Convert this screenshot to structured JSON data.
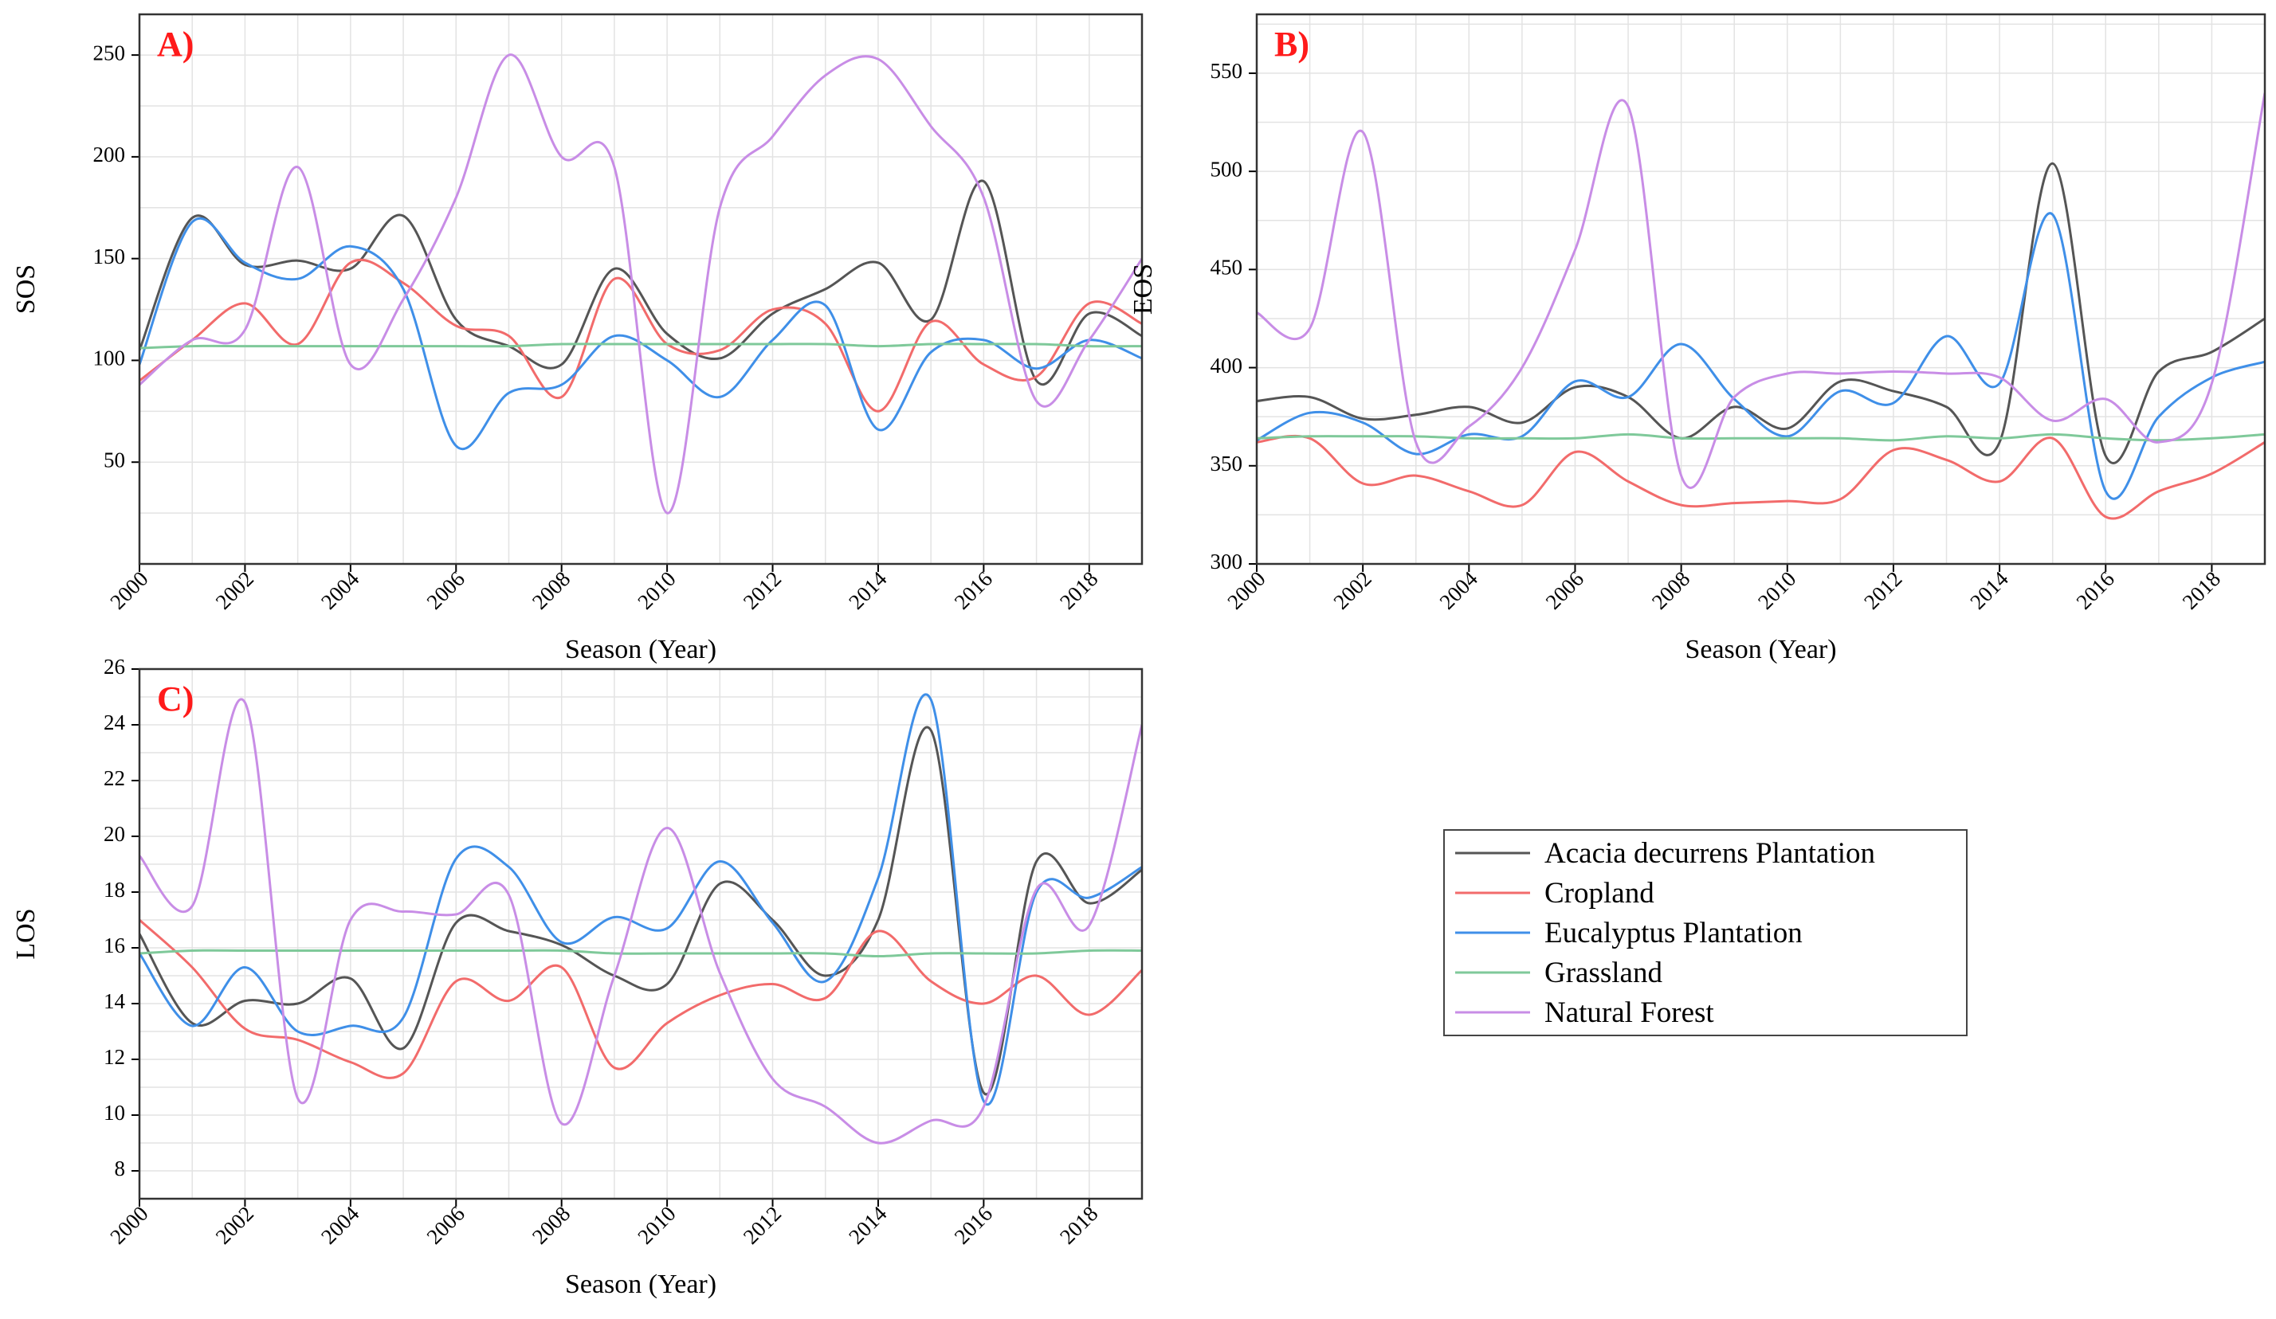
{
  "colors": {
    "acacia": "#555555",
    "cropland": "#f26b6b",
    "eucalyptus": "#3f8fe8",
    "grassland": "#7fc99a",
    "natural_forest": "#c88de6"
  },
  "legend": {
    "entries": [
      "Acacia decurrens Plantation",
      "Cropland",
      "Eucalyptus Plantation",
      "Grassland",
      "Natural Forest"
    ]
  },
  "chart_data": [
    {
      "type": "line",
      "panel_label": "A)",
      "xlabel": "Season (Year)",
      "ylabel": "SOS",
      "xlim": [
        2000,
        2019
      ],
      "ylim": [
        0,
        270
      ],
      "x_ticks": [
        "2000",
        "2002",
        "2004",
        "2006",
        "2008",
        "2010",
        "2012",
        "2014",
        "2016",
        "2018"
      ],
      "y_ticks": [
        "50",
        "100",
        "150",
        "200",
        "250"
      ],
      "x_tick_values": [
        2000,
        2002,
        2004,
        2006,
        2008,
        2010,
        2012,
        2014,
        2016,
        2018
      ],
      "y_tick_values": [
        50,
        100,
        150,
        200,
        250
      ],
      "grid": true,
      "series": [
        {
          "name": "Acacia decurrens Plantation",
          "x": [
            2000,
            2001,
            2002,
            2003,
            2004,
            2005,
            2006,
            2007,
            2008,
            2009,
            2010,
            2011,
            2012,
            2013,
            2014,
            2015,
            2016,
            2017,
            2018,
            2019
          ],
          "values": [
            105,
            170,
            147,
            149,
            145,
            171,
            120,
            107,
            98,
            145,
            113,
            101,
            123,
            135,
            148,
            120,
            188,
            90,
            123,
            112
          ]
        },
        {
          "name": "Cropland",
          "x": [
            2000,
            2001,
            2002,
            2003,
            2004,
            2005,
            2006,
            2007,
            2008,
            2009,
            2010,
            2011,
            2012,
            2013,
            2014,
            2015,
            2016,
            2017,
            2018,
            2019
          ],
          "values": [
            90,
            110,
            128,
            108,
            148,
            138,
            117,
            112,
            82,
            140,
            108,
            105,
            125,
            118,
            75,
            119,
            98,
            92,
            128,
            118
          ]
        },
        {
          "name": "Eucalyptus Plantation",
          "x": [
            2000,
            2001,
            2002,
            2003,
            2004,
            2005,
            2006,
            2007,
            2008,
            2009,
            2010,
            2011,
            2012,
            2013,
            2014,
            2015,
            2016,
            2017,
            2018,
            2019
          ],
          "values": [
            98,
            168,
            148,
            140,
            156,
            135,
            58,
            84,
            88,
            112,
            100,
            82,
            110,
            127,
            66,
            104,
            110,
            96,
            110,
            101
          ]
        },
        {
          "name": "Grassland",
          "x": [
            2000,
            2001,
            2002,
            2003,
            2004,
            2005,
            2006,
            2007,
            2008,
            2009,
            2010,
            2011,
            2012,
            2013,
            2014,
            2015,
            2016,
            2017,
            2018,
            2019
          ],
          "values": [
            106,
            107,
            107,
            107,
            107,
            107,
            107,
            107,
            108,
            108,
            108,
            108,
            108,
            108,
            107,
            108,
            108,
            108,
            107,
            107
          ]
        },
        {
          "name": "Natural Forest",
          "x": [
            2000,
            2001,
            2002,
            2003,
            2004,
            2005,
            2006,
            2007,
            2008,
            2009,
            2010,
            2011,
            2012,
            2013,
            2014,
            2015,
            2016,
            2017,
            2018,
            2019
          ],
          "values": [
            88,
            110,
            115,
            195,
            98,
            130,
            180,
            250,
            200,
            195,
            25,
            175,
            210,
            240,
            248,
            215,
            180,
            80,
            110,
            150
          ]
        }
      ]
    },
    {
      "type": "line",
      "panel_label": "B)",
      "xlabel": "Season (Year)",
      "ylabel": "EOS",
      "xlim": [
        2000,
        2019
      ],
      "ylim": [
        300,
        580
      ],
      "x_ticks": [
        "2000",
        "2002",
        "2004",
        "2006",
        "2008",
        "2010",
        "2012",
        "2014",
        "2016",
        "2018"
      ],
      "y_ticks": [
        "300",
        "350",
        "400",
        "450",
        "500",
        "550"
      ],
      "x_tick_values": [
        2000,
        2002,
        2004,
        2006,
        2008,
        2010,
        2012,
        2014,
        2016,
        2018
      ],
      "y_tick_values": [
        300,
        350,
        400,
        450,
        500,
        550
      ],
      "grid": true,
      "series": [
        {
          "name": "Acacia decurrens Plantation",
          "x": [
            2000,
            2001,
            2002,
            2003,
            2004,
            2005,
            2006,
            2007,
            2008,
            2009,
            2010,
            2011,
            2012,
            2013,
            2014,
            2015,
            2016,
            2017,
            2018,
            2019
          ],
          "values": [
            383,
            385,
            374,
            376,
            380,
            372,
            390,
            385,
            364,
            380,
            369,
            393,
            388,
            380,
            362,
            504,
            355,
            398,
            408,
            425
          ]
        },
        {
          "name": "Cropland",
          "x": [
            2000,
            2001,
            2002,
            2003,
            2004,
            2005,
            2006,
            2007,
            2008,
            2009,
            2010,
            2011,
            2012,
            2013,
            2014,
            2015,
            2016,
            2017,
            2018,
            2019
          ],
          "values": [
            362,
            364,
            341,
            345,
            337,
            330,
            357,
            342,
            330,
            331,
            332,
            333,
            358,
            353,
            342,
            364,
            324,
            337,
            346,
            362
          ]
        },
        {
          "name": "Eucalyptus Plantation",
          "x": [
            2000,
            2001,
            2002,
            2003,
            2004,
            2005,
            2006,
            2007,
            2008,
            2009,
            2010,
            2011,
            2012,
            2013,
            2014,
            2015,
            2016,
            2017,
            2018,
            2019
          ],
          "values": [
            363,
            377,
            372,
            356,
            366,
            365,
            393,
            385,
            412,
            384,
            365,
            388,
            382,
            416,
            392,
            478,
            337,
            375,
            395,
            403
          ]
        },
        {
          "name": "Grassland",
          "x": [
            2000,
            2001,
            2002,
            2003,
            2004,
            2005,
            2006,
            2007,
            2008,
            2009,
            2010,
            2011,
            2012,
            2013,
            2014,
            2015,
            2016,
            2017,
            2018,
            2019
          ],
          "values": [
            364,
            365,
            365,
            365,
            364,
            364,
            364,
            366,
            364,
            364,
            364,
            364,
            363,
            365,
            364,
            366,
            364,
            363,
            364,
            366
          ]
        },
        {
          "name": "Natural Forest",
          "x": [
            2000,
            2001,
            2002,
            2003,
            2004,
            2005,
            2006,
            2007,
            2008,
            2009,
            2010,
            2011,
            2012,
            2013,
            2014,
            2015,
            2016,
            2017,
            2018,
            2019
          ],
          "values": [
            428,
            420,
            520,
            362,
            370,
            400,
            460,
            533,
            345,
            385,
            397,
            397,
            398,
            397,
            395,
            373,
            384,
            362,
            392,
            540
          ]
        }
      ]
    },
    {
      "type": "line",
      "panel_label": "C)",
      "xlabel": "Season (Year)",
      "ylabel": "LOS",
      "xlim": [
        2000,
        2019
      ],
      "ylim": [
        7,
        26
      ],
      "x_ticks": [
        "2000",
        "2002",
        "2004",
        "2006",
        "2008",
        "2010",
        "2012",
        "2014",
        "2016",
        "2018"
      ],
      "y_ticks": [
        "8",
        "10",
        "12",
        "14",
        "16",
        "18",
        "20",
        "22",
        "24",
        "26"
      ],
      "x_tick_values": [
        2000,
        2002,
        2004,
        2006,
        2008,
        2010,
        2012,
        2014,
        2016,
        2018
      ],
      "y_tick_values": [
        8,
        10,
        12,
        14,
        16,
        18,
        20,
        22,
        24,
        26
      ],
      "grid": true,
      "series": [
        {
          "name": "Acacia decurrens Plantation",
          "x": [
            2000,
            2001,
            2002,
            2003,
            2004,
            2005,
            2006,
            2007,
            2008,
            2009,
            2010,
            2011,
            2012,
            2013,
            2014,
            2015,
            2016,
            2017,
            2018,
            2019
          ],
          "values": [
            16.5,
            13.3,
            14.1,
            14.0,
            14.9,
            12.4,
            16.9,
            16.6,
            16.1,
            15.0,
            14.7,
            18.3,
            17.0,
            15.0,
            17.0,
            23.8,
            10.8,
            19.1,
            17.6,
            18.8
          ]
        },
        {
          "name": "Cropland",
          "x": [
            2000,
            2001,
            2002,
            2003,
            2004,
            2005,
            2006,
            2007,
            2008,
            2009,
            2010,
            2011,
            2012,
            2013,
            2014,
            2015,
            2016,
            2017,
            2018,
            2019
          ],
          "values": [
            17.0,
            15.3,
            13.1,
            12.7,
            11.9,
            11.5,
            14.8,
            14.1,
            15.3,
            11.7,
            13.3,
            14.3,
            14.7,
            14.2,
            16.6,
            14.8,
            14.0,
            15.0,
            13.6,
            15.2
          ]
        },
        {
          "name": "Eucalyptus Plantation",
          "x": [
            2000,
            2001,
            2002,
            2003,
            2004,
            2005,
            2006,
            2007,
            2008,
            2009,
            2010,
            2011,
            2012,
            2013,
            2014,
            2015,
            2016,
            2017,
            2018,
            2019
          ],
          "values": [
            15.8,
            13.2,
            15.3,
            13.0,
            13.2,
            13.5,
            19.2,
            18.9,
            16.2,
            17.1,
            16.7,
            19.1,
            16.9,
            14.8,
            18.5,
            24.9,
            10.5,
            18.0,
            17.8,
            18.9
          ]
        },
        {
          "name": "Grassland",
          "x": [
            2000,
            2001,
            2002,
            2003,
            2004,
            2005,
            2006,
            2007,
            2008,
            2009,
            2010,
            2011,
            2012,
            2013,
            2014,
            2015,
            2016,
            2017,
            2018,
            2019
          ],
          "values": [
            15.8,
            15.9,
            15.9,
            15.9,
            15.9,
            15.9,
            15.9,
            15.9,
            15.9,
            15.8,
            15.8,
            15.8,
            15.8,
            15.8,
            15.7,
            15.8,
            15.8,
            15.8,
            15.9,
            15.9
          ]
        },
        {
          "name": "Natural Forest",
          "x": [
            2000,
            2001,
            2002,
            2003,
            2004,
            2005,
            2006,
            2007,
            2008,
            2009,
            2010,
            2011,
            2012,
            2013,
            2014,
            2015,
            2016,
            2017,
            2018,
            2019
          ],
          "values": [
            19.3,
            17.5,
            24.8,
            10.6,
            17.0,
            17.3,
            17.2,
            17.9,
            9.7,
            15.0,
            20.3,
            15.1,
            11.3,
            10.3,
            9.0,
            9.8,
            10.3,
            18.1,
            16.8,
            24.0
          ]
        }
      ]
    }
  ]
}
